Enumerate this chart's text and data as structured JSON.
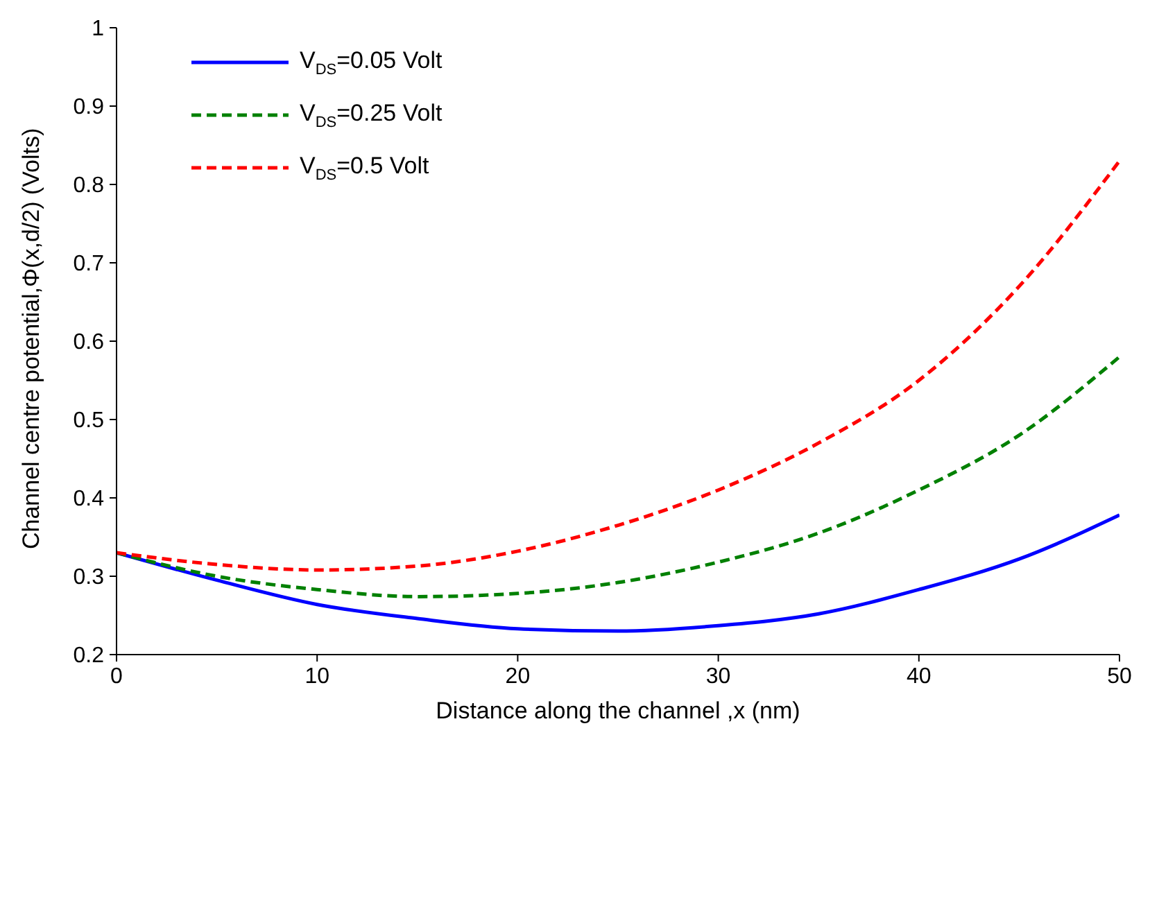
{
  "chart_data": {
    "type": "line",
    "xlabel": "Distance along the channel ,x (nm)",
    "ylabel": "Channel centre potential,Φ(x,d/2) (Volts)",
    "x": [
      0,
      5,
      10,
      15,
      20,
      25,
      30,
      35,
      40,
      45,
      50
    ],
    "series": [
      {
        "name": "V$_{DS}$=0.05 Volt",
        "color": "#0000ff",
        "line_style": "solid",
        "values": [
          0.33,
          0.295,
          0.264,
          0.246,
          0.233,
          0.23,
          0.237,
          0.252,
          0.283,
          0.322,
          0.378
        ]
      },
      {
        "name": "V$_{DS}$=0.25 Volt",
        "color": "#008000",
        "line_style": "dashed",
        "values": [
          0.33,
          0.3,
          0.283,
          0.274,
          0.278,
          0.292,
          0.318,
          0.355,
          0.41,
          0.48,
          0.58
        ]
      },
      {
        "name": "V$_{DS}$=0.5 Volt",
        "color": "#ff0000",
        "line_style": "dashed",
        "values": [
          0.33,
          0.315,
          0.308,
          0.313,
          0.332,
          0.365,
          0.41,
          0.47,
          0.55,
          0.67,
          0.83
        ]
      }
    ],
    "xlim": [
      0,
      50
    ],
    "xticks": [
      0,
      10,
      20,
      30,
      40,
      50
    ],
    "ylim": [
      0.2,
      1
    ],
    "yticks": [
      0.2,
      0.3,
      0.4,
      0.5,
      0.6,
      0.7,
      0.8,
      0.9,
      1
    ],
    "legend": "top left",
    "marker": "none"
  }
}
